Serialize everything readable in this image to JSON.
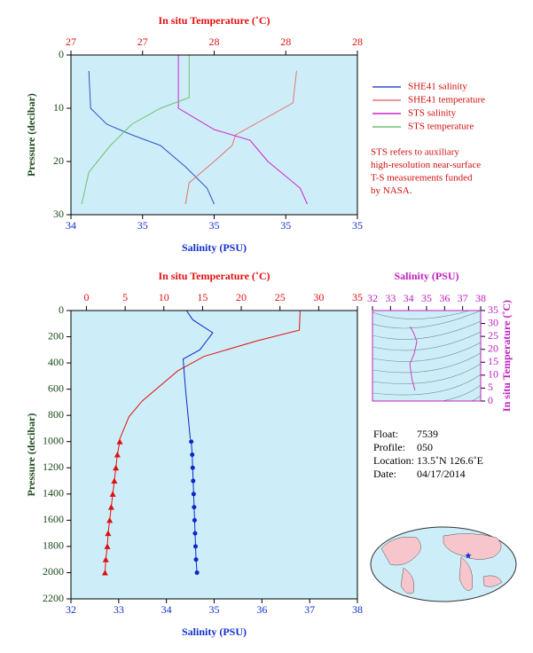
{
  "chart_data": [
    {
      "type": "line",
      "x2label": "In situ Temperature (˚C)",
      "xlabel": "Salinity (PSU)",
      "ylabel": "Pressure (decibar)",
      "xlim": [
        34.4,
        35.2
      ],
      "xticks": [
        {
          "value": 34.4,
          "label": "34"
        },
        {
          "value": 34.6,
          "label": "35"
        },
        {
          "value": 34.8,
          "label": "35"
        },
        {
          "value": 35.0,
          "label": "35"
        },
        {
          "value": 35.2,
          "label": "35"
        }
      ],
      "x2lim": [
        27.2,
        28.0
      ],
      "x2ticks": [
        {
          "value": 27.2,
          "label": "27"
        },
        {
          "value": 27.4,
          "label": "27"
        },
        {
          "value": 27.6,
          "label": "28"
        },
        {
          "value": 27.8,
          "label": "28"
        },
        {
          "value": 28.0,
          "label": "28"
        }
      ],
      "ylim": [
        0,
        30
      ],
      "yticks": [
        0,
        10,
        20,
        30
      ],
      "y_inverted": true,
      "series": [
        {
          "name": "SHE41 salinity",
          "color": "#3050c8",
          "axis": "x",
          "pressure": [
            3,
            10,
            13,
            15,
            17,
            21,
            25,
            28
          ],
          "values": [
            34.45,
            34.455,
            34.5,
            34.57,
            34.65,
            34.72,
            34.78,
            34.8
          ]
        },
        {
          "name": "SHE41 temperature",
          "color": "#e87070",
          "axis": "x2",
          "pressure": [
            3,
            9,
            12,
            15,
            17,
            20,
            24,
            28
          ],
          "values": [
            27.83,
            27.82,
            27.74,
            27.66,
            27.65,
            27.6,
            27.53,
            27.52
          ]
        },
        {
          "name": "STS salinity",
          "color": "#d020d0",
          "axis": "x",
          "pressure": [
            0,
            10,
            14,
            16,
            20,
            25,
            28
          ],
          "values": [
            34.7,
            34.7,
            34.8,
            34.9,
            34.95,
            35.04,
            35.06
          ]
        },
        {
          "name": "STS temperature",
          "color": "#70c070",
          "axis": "x2",
          "pressure": [
            0,
            8,
            10,
            13,
            17,
            22,
            28
          ],
          "values": [
            27.53,
            27.53,
            27.45,
            27.37,
            27.31,
            27.25,
            27.23
          ]
        }
      ],
      "legend": "right",
      "annotation": [
        "STS refers to auxiliary",
        "high-resolution near-surface",
        "T-S measurements funded",
        "by NASA."
      ]
    },
    {
      "type": "line",
      "x2label": "In situ Temperature (˚C)",
      "xlabel": "Salinity (PSU)",
      "ylabel": "Pressure (decibar)",
      "xlim": [
        32,
        38
      ],
      "xticks": [
        32,
        33,
        34,
        35,
        36,
        37,
        38
      ],
      "x2lim": [
        -2,
        35
      ],
      "x2ticks": [
        0,
        5,
        10,
        15,
        20,
        25,
        30,
        35
      ],
      "ylim": [
        0,
        2200
      ],
      "yticks": [
        0,
        200,
        400,
        600,
        800,
        1000,
        1200,
        1400,
        1600,
        1800,
        2000,
        2200
      ],
      "y_inverted": true,
      "series": [
        {
          "color": "#e01010",
          "axis": "x2",
          "pressure": [
            0,
            150,
            230,
            350,
            460,
            690,
            810,
            980
          ],
          "values": [
            27.6,
            27.5,
            22.1,
            15.2,
            11.8,
            7.2,
            5.5,
            4.3
          ]
        },
        {
          "color": "#e01010",
          "axis": "x2",
          "marker": "triangle",
          "pressure": [
            1000,
            1100,
            1200,
            1300,
            1400,
            1500,
            1600,
            1700,
            1800,
            1900,
            2000
          ],
          "values": [
            4.3,
            4.0,
            3.8,
            3.6,
            3.4,
            3.2,
            3.0,
            2.8,
            2.7,
            2.5,
            2.4
          ]
        },
        {
          "color": "#0a28c8",
          "axis": "x",
          "pressure": [
            0,
            70,
            170,
            300,
            370,
            600,
            980
          ],
          "values": [
            34.42,
            34.55,
            34.97,
            34.7,
            34.35,
            34.4,
            34.5
          ]
        },
        {
          "color": "#0a28c8",
          "axis": "x",
          "marker": "circle",
          "pressure": [
            1000,
            1100,
            1200,
            1300,
            1400,
            1500,
            1600,
            1700,
            1800,
            1900,
            2000
          ],
          "values": [
            34.52,
            34.54,
            34.55,
            34.56,
            34.57,
            34.58,
            34.59,
            34.6,
            34.61,
            34.62,
            34.64
          ]
        }
      ]
    },
    {
      "type": "line",
      "xlabel": "Salinity (PSU)",
      "ylabel": "In situ Temperature (˚C)",
      "xlim": [
        32,
        38
      ],
      "xticks": [
        32,
        33,
        34,
        35,
        36,
        37,
        38
      ],
      "x_axis_side": "top",
      "ylim": [
        0,
        35
      ],
      "yticks": [
        0,
        5,
        10,
        15,
        20,
        25,
        30,
        35
      ],
      "y_axis_side": "right",
      "series": [
        {
          "color": "#d040c0",
          "x": [
            34.1,
            34.3,
            34.46,
            34.3,
            34.07,
            34.2,
            34.36
          ],
          "values": [
            28.8,
            26,
            23,
            18,
            14.4,
            8,
            4.1
          ]
        }
      ]
    }
  ],
  "info": [
    {
      "label": "Float:",
      "value": "7539"
    },
    {
      "label": "Profile:",
      "value": "050"
    },
    {
      "label": "Location:",
      "value": "13.5˚N  126.6˚E"
    },
    {
      "label": "Date:",
      "value": "04/17/2014"
    }
  ]
}
